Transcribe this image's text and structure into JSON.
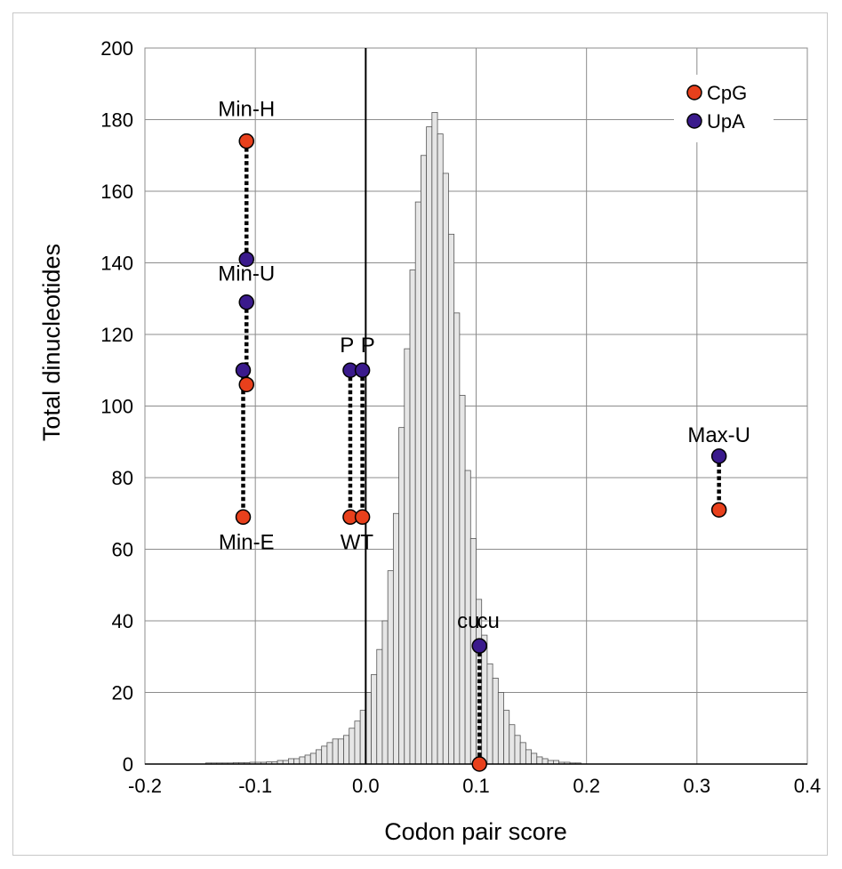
{
  "chart_data": {
    "type": "scatter",
    "xlabel": "Codon pair score",
    "ylabel": "Total dinucleotides",
    "xlim": [
      -0.2,
      0.4
    ],
    "ylim": [
      0,
      200
    ],
    "xticks": [
      -0.2,
      -0.1,
      0.0,
      0.1,
      0.2,
      0.3,
      0.4
    ],
    "xtick_labels": [
      "-0.2",
      "-0.1",
      "0.0",
      "0.1",
      "0.2",
      "0.3",
      "0.4"
    ],
    "yticks": [
      0,
      20,
      40,
      60,
      80,
      100,
      120,
      140,
      160,
      180,
      200
    ],
    "yticks_labels": [
      "0",
      "20",
      "40",
      "60",
      "80",
      "100",
      "120",
      "140",
      "160",
      "180",
      "200"
    ],
    "grid": true,
    "legend_position": "top-right",
    "series": [
      {
        "name": "CpG",
        "color": "#e8401c",
        "points": [
          {
            "x": -0.108,
            "y": 174
          },
          {
            "x": -0.108,
            "y": 106
          },
          {
            "x": -0.111,
            "y": 69
          },
          {
            "x": -0.014,
            "y": 69
          },
          {
            "x": -0.003,
            "y": 69
          },
          {
            "x": 0.103,
            "y": 0
          },
          {
            "x": 0.32,
            "y": 71
          }
        ]
      },
      {
        "name": "UpA",
        "color": "#3a1a8c",
        "points": [
          {
            "x": -0.108,
            "y": 141
          },
          {
            "x": -0.108,
            "y": 129
          },
          {
            "x": -0.111,
            "y": 110
          },
          {
            "x": -0.014,
            "y": 110
          },
          {
            "x": -0.003,
            "y": 110
          },
          {
            "x": 0.103,
            "y": 33
          },
          {
            "x": 0.32,
            "y": 86
          }
        ]
      }
    ],
    "connectors": [
      {
        "x1": -0.108,
        "y1": 174,
        "x2": -0.108,
        "y2": 141
      },
      {
        "x1": -0.108,
        "y1": 129,
        "x2": -0.108,
        "y2": 106
      },
      {
        "x1": -0.111,
        "y1": 110,
        "x2": -0.111,
        "y2": 69
      },
      {
        "x1": -0.014,
        "y1": 110,
        "x2": -0.014,
        "y2": 69
      },
      {
        "x1": -0.003,
        "y1": 110,
        "x2": -0.003,
        "y2": 69
      },
      {
        "x1": 0.103,
        "y1": 33,
        "x2": 0.103,
        "y2": 0
      },
      {
        "x1": 0.32,
        "y1": 86,
        "x2": 0.32,
        "y2": 71
      }
    ],
    "annotations": [
      {
        "text": "Min-H",
        "x": -0.108,
        "y": 181,
        "anchor": "middle"
      },
      {
        "text": "Min-U",
        "x": -0.108,
        "y": 135,
        "anchor": "middle"
      },
      {
        "text": "Min-E",
        "x": -0.108,
        "y": 60,
        "anchor": "middle"
      },
      {
        "text": "WT",
        "x": -0.008,
        "y": 60,
        "anchor": "middle"
      },
      {
        "text": "P",
        "x": -0.017,
        "y": 115,
        "anchor": "middle"
      },
      {
        "text": "P",
        "x": 0.002,
        "y": 115,
        "anchor": "middle"
      },
      {
        "text": "Max-U",
        "x": 0.32,
        "y": 90,
        "anchor": "middle"
      },
      {
        "text": "cu",
        "x": 0.093,
        "y": 38,
        "anchor": "middle"
      },
      {
        "text": "cu",
        "x": 0.111,
        "y": 38,
        "anchor": "middle"
      }
    ],
    "histogram": {
      "color": "#e6e6e6",
      "bin_start": -0.145,
      "bin_width": 0.005,
      "counts": [
        0.3,
        0.3,
        0.3,
        0.3,
        0.3,
        0.4,
        0.4,
        0.4,
        0.5,
        0.5,
        0.5,
        0.6,
        0.6,
        1,
        1,
        1.5,
        1.5,
        2,
        2.5,
        3,
        4,
        5,
        6,
        7,
        7,
        8,
        10,
        12,
        15,
        20,
        25,
        32,
        40,
        54,
        70,
        94,
        116,
        138,
        157,
        170,
        178,
        182,
        176,
        165,
        148,
        126,
        103,
        82,
        63,
        46,
        36,
        28,
        24,
        20,
        15,
        11,
        8,
        6,
        4,
        3,
        2,
        1.5,
        1,
        1,
        0.5,
        0.5,
        0.3,
        0.3
      ]
    }
  }
}
